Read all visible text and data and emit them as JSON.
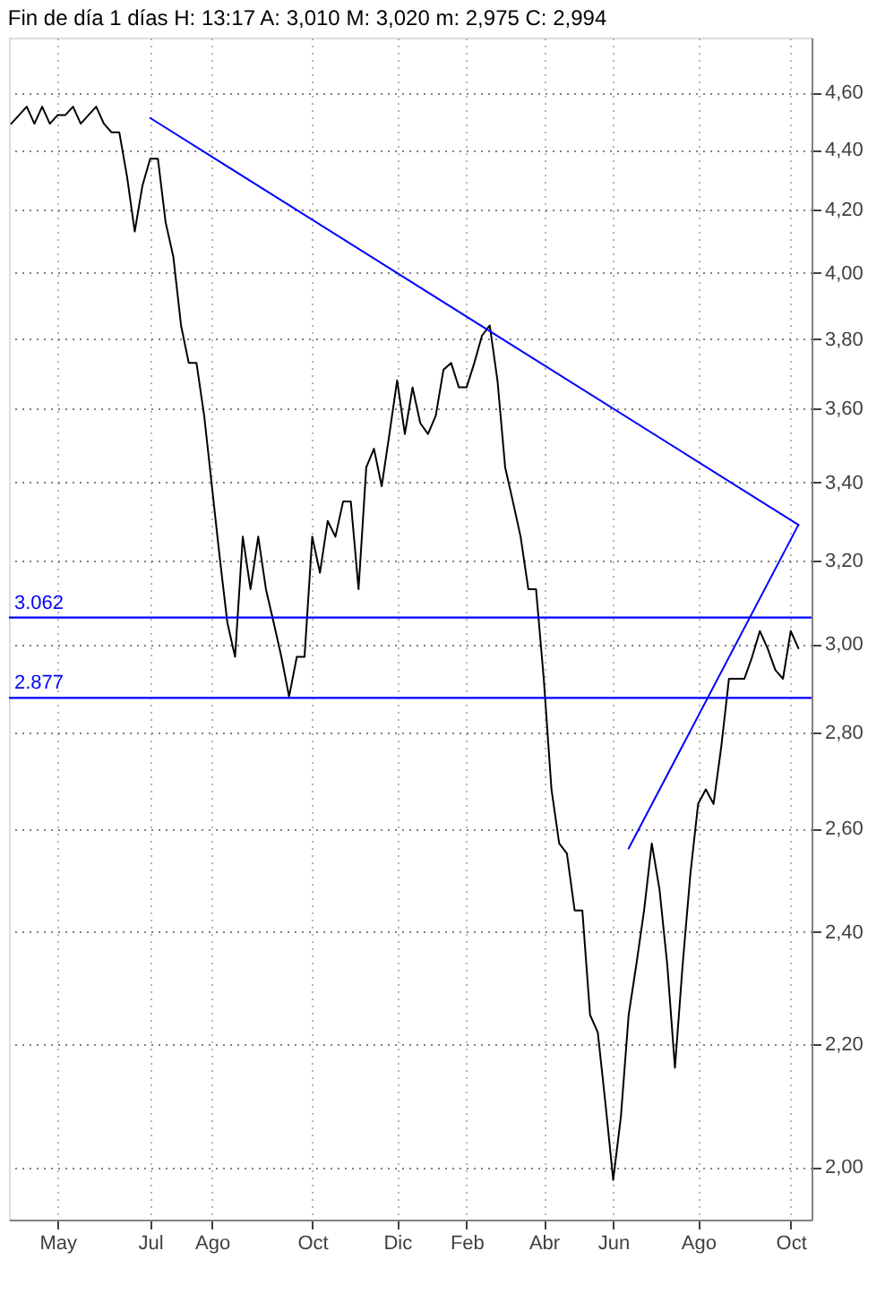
{
  "chart_data": {
    "type": "line",
    "title": "Fin de día 1 días  H: 13:17  A: 3,010  M: 3,020  m: 2,975  C: 2,994",
    "log": "y",
    "grid": true,
    "marker": "none",
    "line_style": "solid",
    "categories": [
      null,
      null,
      null,
      null,
      null,
      null,
      "May",
      null,
      null,
      null,
      null,
      null,
      null,
      null,
      null,
      null,
      null,
      null,
      "Jul",
      null,
      null,
      null,
      null,
      null,
      null,
      null,
      "Ago",
      null,
      null,
      null,
      null,
      null,
      null,
      null,
      null,
      null,
      null,
      null,
      null,
      "Oct",
      null,
      null,
      null,
      null,
      null,
      null,
      null,
      null,
      null,
      null,
      "Dic",
      null,
      null,
      null,
      null,
      null,
      null,
      null,
      null,
      "Feb",
      null,
      null,
      null,
      null,
      null,
      null,
      null,
      null,
      null,
      "Abr",
      null,
      null,
      null,
      null,
      null,
      null,
      null,
      null,
      "Jun",
      null,
      null,
      null,
      null,
      null,
      null,
      null,
      null,
      null,
      null,
      "Ago",
      null,
      null,
      null,
      null,
      null,
      null,
      null,
      null,
      null,
      null,
      null,
      "Oct",
      null
    ],
    "ylim": [
      1.92,
      4.8
    ],
    "yticks": [
      {
        "value": 2.0,
        "label": "2,00"
      },
      {
        "value": 2.2,
        "label": "2,20"
      },
      {
        "value": 2.4,
        "label": "2,40"
      },
      {
        "value": 2.6,
        "label": "2,60"
      },
      {
        "value": 2.8,
        "label": "2,80"
      },
      {
        "value": 3.0,
        "label": "3,00"
      },
      {
        "value": 3.2,
        "label": "3,20"
      },
      {
        "value": 3.4,
        "label": "3,40"
      },
      {
        "value": 3.6,
        "label": "3,60"
      },
      {
        "value": 3.8,
        "label": "3,80"
      },
      {
        "value": 4.0,
        "label": "4,00"
      },
      {
        "value": 4.2,
        "label": "4,20"
      },
      {
        "value": 4.4,
        "label": "4,40"
      },
      {
        "value": 4.6,
        "label": "4,60"
      }
    ],
    "ref_lines": [
      {
        "axis": "y",
        "value": 3.062,
        "label": "3.062",
        "color": "#0000ff"
      },
      {
        "axis": "y",
        "value": 2.877,
        "label": "2.877",
        "color": "#0000ff"
      }
    ],
    "series": [
      {
        "color": "#000000",
        "values": [
          4.49,
          4.52,
          4.55,
          4.49,
          4.55,
          4.49,
          4.52,
          4.52,
          4.55,
          4.49,
          4.52,
          4.55,
          4.49,
          4.46,
          4.46,
          4.31,
          4.13,
          4.28,
          4.37,
          4.37,
          4.16,
          4.05,
          3.84,
          3.73,
          3.73,
          3.58,
          3.39,
          3.21,
          3.05,
          2.97,
          3.26,
          3.13,
          3.26,
          3.13,
          3.05,
          2.97,
          2.88,
          2.97,
          2.97,
          3.26,
          3.17,
          3.3,
          3.26,
          3.35,
          3.35,
          3.13,
          3.44,
          3.49,
          3.39,
          3.53,
          3.68,
          3.53,
          3.66,
          3.56,
          3.53,
          3.58,
          3.71,
          3.73,
          3.66,
          3.66,
          3.73,
          3.81,
          3.84,
          3.68,
          3.44,
          3.35,
          3.26,
          3.13,
          3.13,
          2.92,
          2.68,
          2.57,
          2.55,
          2.44,
          2.44,
          2.25,
          2.22,
          2.1,
          1.98,
          2.08,
          2.25,
          2.34,
          2.44,
          2.57,
          2.48,
          2.34,
          2.16,
          2.34,
          2.51,
          2.65,
          2.68,
          2.65,
          2.77,
          2.92,
          2.92,
          2.92,
          2.97,
          3.03,
          2.99,
          2.94,
          2.92,
          3.03,
          2.99
        ]
      },
      {
        "color": "#0000ff",
        "values": [
          null,
          null,
          null,
          null,
          null,
          null,
          null,
          null,
          null,
          null,
          null,
          null,
          null,
          null,
          null,
          null,
          null,
          null,
          4.51,
          null,
          null,
          null,
          null,
          null,
          null,
          null,
          null,
          null,
          null,
          null,
          null,
          null,
          null,
          null,
          null,
          null,
          null,
          null,
          null,
          null,
          null,
          null,
          null,
          null,
          null,
          null,
          null,
          null,
          null,
          null,
          null,
          null,
          null,
          null,
          null,
          null,
          null,
          null,
          null,
          null,
          null,
          null,
          null,
          null,
          null,
          null,
          null,
          null,
          null,
          null,
          null,
          null,
          null,
          null,
          null,
          null,
          null,
          null,
          null,
          null,
          null,
          null,
          null,
          null,
          null,
          null,
          null,
          null,
          null,
          null,
          null,
          null,
          null,
          null,
          null,
          null,
          null,
          null,
          null,
          null,
          null,
          null,
          3.29
        ]
      },
      {
        "color": "#0000ff",
        "values": [
          null,
          null,
          null,
          null,
          null,
          null,
          null,
          null,
          null,
          null,
          null,
          null,
          null,
          null,
          null,
          null,
          null,
          null,
          null,
          null,
          null,
          null,
          null,
          null,
          null,
          null,
          null,
          null,
          null,
          null,
          null,
          null,
          null,
          null,
          null,
          null,
          null,
          null,
          null,
          null,
          null,
          null,
          null,
          null,
          null,
          null,
          null,
          null,
          null,
          null,
          null,
          null,
          null,
          null,
          null,
          null,
          null,
          null,
          null,
          null,
          null,
          null,
          null,
          null,
          null,
          null,
          null,
          null,
          null,
          null,
          null,
          null,
          null,
          null,
          null,
          null,
          null,
          null,
          null,
          null,
          2.56,
          null,
          null,
          null,
          null,
          null,
          null,
          null,
          null,
          null,
          null,
          null,
          null,
          null,
          null,
          null,
          null,
          null,
          null,
          null,
          null,
          null,
          3.29
        ]
      }
    ]
  }
}
